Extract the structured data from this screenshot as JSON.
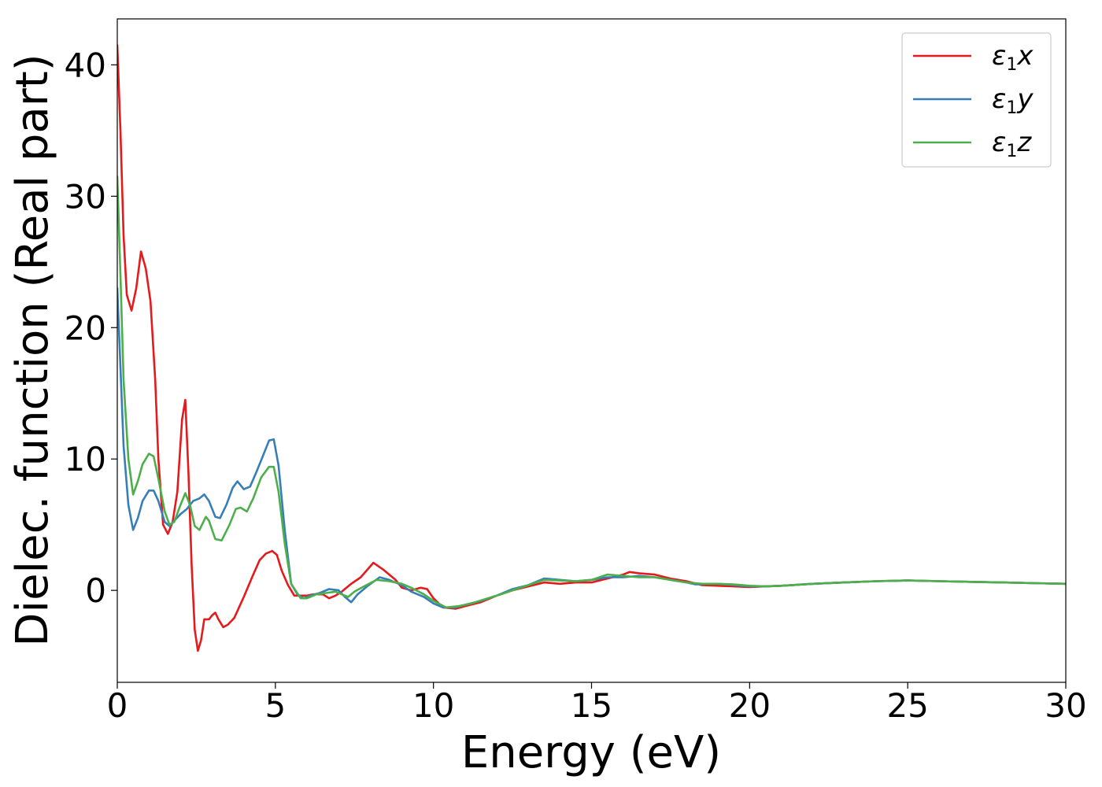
{
  "chart_data": {
    "type": "line",
    "xlabel": "Energy (eV)",
    "ylabel": "Dielec. function (Real part)",
    "xlim": [
      0,
      30
    ],
    "ylim": [
      -7,
      43.5
    ],
    "xticks": [
      0,
      5,
      10,
      15,
      20,
      25,
      30
    ],
    "yticks": [
      0,
      10,
      20,
      30,
      40
    ],
    "grid": false,
    "legend_position": "top-right",
    "series": [
      {
        "name": "ε1x",
        "legend_base": "ε",
        "legend_sub": "1",
        "legend_var": "x",
        "color": "#e41a1c",
        "points": [
          [
            0,
            41.5
          ],
          [
            0.1,
            35
          ],
          [
            0.2,
            27
          ],
          [
            0.3,
            22.5
          ],
          [
            0.45,
            21.3
          ],
          [
            0.6,
            23
          ],
          [
            0.75,
            25.8
          ],
          [
            0.9,
            24.5
          ],
          [
            1.05,
            22
          ],
          [
            1.2,
            16
          ],
          [
            1.3,
            10
          ],
          [
            1.45,
            5
          ],
          [
            1.6,
            4.3
          ],
          [
            1.75,
            5.2
          ],
          [
            1.9,
            7.5
          ],
          [
            2.05,
            13
          ],
          [
            2.15,
            14.5
          ],
          [
            2.25,
            9
          ],
          [
            2.35,
            2
          ],
          [
            2.45,
            -3
          ],
          [
            2.55,
            -4.6
          ],
          [
            2.65,
            -3.8
          ],
          [
            2.75,
            -2.2
          ],
          [
            2.9,
            -2.2
          ],
          [
            3.0,
            -1.9
          ],
          [
            3.1,
            -1.7
          ],
          [
            3.2,
            -2.2
          ],
          [
            3.35,
            -2.8
          ],
          [
            3.5,
            -2.6
          ],
          [
            3.7,
            -2.1
          ],
          [
            4.0,
            -0.5
          ],
          [
            4.3,
            1.2
          ],
          [
            4.5,
            2.3
          ],
          [
            4.7,
            2.8
          ],
          [
            4.9,
            3.0
          ],
          [
            5.05,
            2.7
          ],
          [
            5.2,
            1.5
          ],
          [
            5.4,
            0.4
          ],
          [
            5.6,
            -0.4
          ],
          [
            6.0,
            -0.4
          ],
          [
            6.2,
            -0.3
          ],
          [
            6.5,
            -0.3
          ],
          [
            6.7,
            -0.6
          ],
          [
            6.9,
            -0.4
          ],
          [
            7.1,
            -0.1
          ],
          [
            7.4,
            0.5
          ],
          [
            7.7,
            1.0
          ],
          [
            8.1,
            2.1
          ],
          [
            8.4,
            1.6
          ],
          [
            8.8,
            0.8
          ],
          [
            9.0,
            0.2
          ],
          [
            9.3,
            0.0
          ],
          [
            9.6,
            0.2
          ],
          [
            9.8,
            0.1
          ],
          [
            10.0,
            -0.6
          ],
          [
            10.3,
            -1.3
          ],
          [
            10.7,
            -1.4
          ],
          [
            11.0,
            -1.2
          ],
          [
            11.5,
            -0.9
          ],
          [
            12.0,
            -0.4
          ],
          [
            12.5,
            0.0
          ],
          [
            13.0,
            0.3
          ],
          [
            13.5,
            0.6
          ],
          [
            14.0,
            0.5
          ],
          [
            14.5,
            0.6
          ],
          [
            15.0,
            0.6
          ],
          [
            15.5,
            0.9
          ],
          [
            16.0,
            1.2
          ],
          [
            16.2,
            1.4
          ],
          [
            16.5,
            1.3
          ],
          [
            17.0,
            1.2
          ],
          [
            17.5,
            0.9
          ],
          [
            18.0,
            0.7
          ],
          [
            18.5,
            0.4
          ],
          [
            19.0,
            0.35
          ],
          [
            19.5,
            0.3
          ],
          [
            20.0,
            0.25
          ],
          [
            20.5,
            0.3
          ],
          [
            21.0,
            0.35
          ],
          [
            22.0,
            0.5
          ],
          [
            23.0,
            0.6
          ],
          [
            24.0,
            0.7
          ],
          [
            25.0,
            0.75
          ],
          [
            26.0,
            0.7
          ],
          [
            27.0,
            0.65
          ],
          [
            28.0,
            0.6
          ],
          [
            29.0,
            0.55
          ],
          [
            30.0,
            0.5
          ]
        ]
      },
      {
        "name": "ε1y",
        "legend_base": "ε",
        "legend_sub": "1",
        "legend_var": "y",
        "color": "#377eb8",
        "points": [
          [
            0,
            23
          ],
          [
            0.1,
            17
          ],
          [
            0.2,
            11
          ],
          [
            0.35,
            6.5
          ],
          [
            0.5,
            4.6
          ],
          [
            0.65,
            5.5
          ],
          [
            0.8,
            6.8
          ],
          [
            1.0,
            7.6
          ],
          [
            1.15,
            7.6
          ],
          [
            1.3,
            6.8
          ],
          [
            1.5,
            5.2
          ],
          [
            1.65,
            4.9
          ],
          [
            1.8,
            5.3
          ],
          [
            2.0,
            5.8
          ],
          [
            2.2,
            6.2
          ],
          [
            2.4,
            6.8
          ],
          [
            2.6,
            7.0
          ],
          [
            2.75,
            7.3
          ],
          [
            2.9,
            6.8
          ],
          [
            3.1,
            5.6
          ],
          [
            3.25,
            5.5
          ],
          [
            3.45,
            6.5
          ],
          [
            3.65,
            7.8
          ],
          [
            3.8,
            8.3
          ],
          [
            4.0,
            7.7
          ],
          [
            4.2,
            7.9
          ],
          [
            4.4,
            9.0
          ],
          [
            4.6,
            10.2
          ],
          [
            4.8,
            11.4
          ],
          [
            4.95,
            11.5
          ],
          [
            5.1,
            9.5
          ],
          [
            5.3,
            4.5
          ],
          [
            5.5,
            0.5
          ],
          [
            5.7,
            -0.3
          ],
          [
            5.9,
            -0.6
          ],
          [
            6.1,
            -0.4
          ],
          [
            6.4,
            -0.2
          ],
          [
            6.7,
            0.1
          ],
          [
            7.0,
            0.0
          ],
          [
            7.2,
            -0.5
          ],
          [
            7.4,
            -0.9
          ],
          [
            7.6,
            -0.3
          ],
          [
            7.9,
            0.3
          ],
          [
            8.3,
            1.0
          ],
          [
            8.6,
            0.8
          ],
          [
            9.0,
            0.4
          ],
          [
            9.3,
            -0.1
          ],
          [
            9.7,
            -0.5
          ],
          [
            10.0,
            -1.0
          ],
          [
            10.3,
            -1.3
          ],
          [
            10.7,
            -1.3
          ],
          [
            11.0,
            -1.1
          ],
          [
            11.5,
            -0.8
          ],
          [
            12.0,
            -0.4
          ],
          [
            12.5,
            0.1
          ],
          [
            13.0,
            0.4
          ],
          [
            13.5,
            0.9
          ],
          [
            14.0,
            0.8
          ],
          [
            14.5,
            0.7
          ],
          [
            15.0,
            0.8
          ],
          [
            15.5,
            1.0
          ],
          [
            16.0,
            1.0
          ],
          [
            16.5,
            1.1
          ],
          [
            17.0,
            1.0
          ],
          [
            17.5,
            0.8
          ],
          [
            18.0,
            0.6
          ],
          [
            18.3,
            0.45
          ],
          [
            18.6,
            0.5
          ],
          [
            19.0,
            0.5
          ],
          [
            19.5,
            0.4
          ],
          [
            20.0,
            0.3
          ],
          [
            20.5,
            0.3
          ],
          [
            21.0,
            0.35
          ],
          [
            22.0,
            0.5
          ],
          [
            23.0,
            0.6
          ],
          [
            24.0,
            0.7
          ],
          [
            25.0,
            0.75
          ],
          [
            26.0,
            0.7
          ],
          [
            27.0,
            0.65
          ],
          [
            28.0,
            0.6
          ],
          [
            29.0,
            0.55
          ],
          [
            30.0,
            0.5
          ]
        ]
      },
      {
        "name": "ε1z",
        "legend_base": "ε",
        "legend_sub": "1",
        "legend_var": "z",
        "color": "#4daf4a",
        "points": [
          [
            0,
            31.5
          ],
          [
            0.1,
            24
          ],
          [
            0.2,
            16
          ],
          [
            0.35,
            10
          ],
          [
            0.5,
            7.3
          ],
          [
            0.65,
            8.3
          ],
          [
            0.8,
            9.6
          ],
          [
            1.0,
            10.4
          ],
          [
            1.15,
            10.2
          ],
          [
            1.3,
            8.5
          ],
          [
            1.5,
            6.0
          ],
          [
            1.65,
            5.0
          ],
          [
            1.8,
            5.2
          ],
          [
            2.0,
            6.5
          ],
          [
            2.15,
            7.4
          ],
          [
            2.3,
            6.5
          ],
          [
            2.45,
            4.9
          ],
          [
            2.6,
            4.6
          ],
          [
            2.8,
            5.6
          ],
          [
            2.9,
            5.3
          ],
          [
            3.1,
            3.9
          ],
          [
            3.3,
            3.8
          ],
          [
            3.55,
            5.0
          ],
          [
            3.75,
            6.2
          ],
          [
            3.9,
            6.3
          ],
          [
            4.1,
            6.0
          ],
          [
            4.3,
            7.0
          ],
          [
            4.55,
            8.6
          ],
          [
            4.8,
            9.4
          ],
          [
            4.95,
            9.4
          ],
          [
            5.1,
            7.5
          ],
          [
            5.3,
            3.5
          ],
          [
            5.5,
            0.5
          ],
          [
            5.8,
            -0.6
          ],
          [
            6.0,
            -0.6
          ],
          [
            6.3,
            -0.3
          ],
          [
            6.6,
            -0.2
          ],
          [
            6.9,
            -0.1
          ],
          [
            7.1,
            -0.3
          ],
          [
            7.3,
            -0.5
          ],
          [
            7.5,
            -0.1
          ],
          [
            7.8,
            0.3
          ],
          [
            8.2,
            0.8
          ],
          [
            8.6,
            0.7
          ],
          [
            9.0,
            0.5
          ],
          [
            9.3,
            0.2
          ],
          [
            9.7,
            -0.3
          ],
          [
            10.0,
            -0.8
          ],
          [
            10.4,
            -1.3
          ],
          [
            10.8,
            -1.2
          ],
          [
            11.2,
            -1.0
          ],
          [
            11.6,
            -0.7
          ],
          [
            12.0,
            -0.4
          ],
          [
            12.5,
            0.0
          ],
          [
            13.0,
            0.4
          ],
          [
            13.5,
            0.8
          ],
          [
            14.0,
            0.75
          ],
          [
            14.5,
            0.7
          ],
          [
            15.0,
            0.8
          ],
          [
            15.5,
            1.2
          ],
          [
            16.0,
            1.1
          ],
          [
            16.5,
            1.0
          ],
          [
            17.0,
            1.0
          ],
          [
            17.5,
            0.8
          ],
          [
            18.0,
            0.6
          ],
          [
            18.5,
            0.5
          ],
          [
            19.0,
            0.5
          ],
          [
            19.5,
            0.45
          ],
          [
            20.0,
            0.35
          ],
          [
            20.5,
            0.3
          ],
          [
            21.0,
            0.35
          ],
          [
            22.0,
            0.5
          ],
          [
            23.0,
            0.6
          ],
          [
            24.0,
            0.7
          ],
          [
            25.0,
            0.75
          ],
          [
            26.0,
            0.7
          ],
          [
            27.0,
            0.65
          ],
          [
            28.0,
            0.6
          ],
          [
            29.0,
            0.55
          ],
          [
            30.0,
            0.5
          ]
        ]
      }
    ]
  }
}
